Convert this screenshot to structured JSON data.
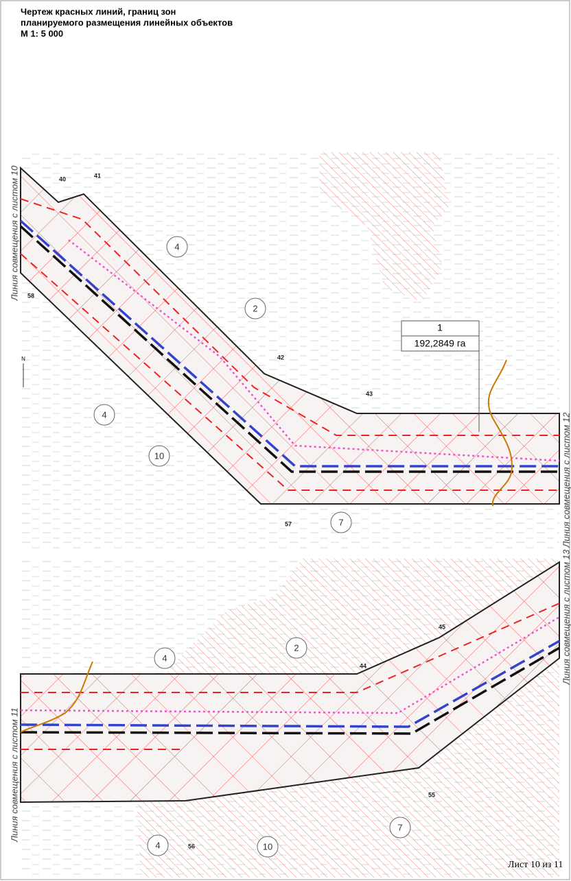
{
  "title": [
    "Чертеж красных линий, границ зон",
    "планируемого размещения линейных объектов",
    "М 1: 5 000"
  ],
  "top_map": {
    "points": [
      "40",
      "41",
      "58",
      "42",
      "43",
      "57"
    ],
    "callouts": [
      "4",
      "2",
      "4",
      "10",
      "7"
    ],
    "side_labels": [
      "Линия совмещения с листом 10",
      "Линия совмещения с листом 12"
    ],
    "parcel": {
      "number": "1",
      "area": "192,2849 га"
    }
  },
  "bottom_map": {
    "points": [
      "44",
      "45",
      "55",
      "56"
    ],
    "callouts": [
      "4",
      "2",
      "4",
      "10",
      "7"
    ],
    "side_labels": [
      "Линия совмещения с листом 11",
      "Линия совмещения с листом 13"
    ]
  },
  "north": "N",
  "sheet": "Лист 10 из 11"
}
